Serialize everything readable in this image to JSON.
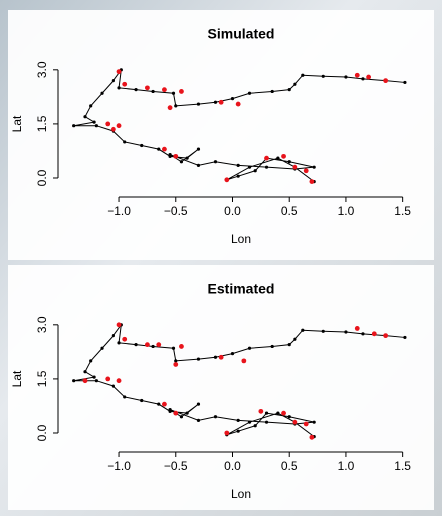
{
  "chart_data": [
    {
      "type": "track",
      "title": "Simulated",
      "x_label": "Lon",
      "y_label": "Lat",
      "xlim": [
        -1.45,
        1.6
      ],
      "ylim": [
        -0.25,
        3.3
      ],
      "xticks": [
        {
          "value": -1,
          "label": "−1.0"
        },
        {
          "value": -0.5,
          "label": "−0.5"
        },
        {
          "value": 0,
          "label": "0.0"
        },
        0.5,
        {
          "value": 1,
          "label": "1.0"
        },
        1.5
      ],
      "yticks": [
        {
          "value": 0,
          "label": "0.0"
        },
        1.5,
        {
          "value": 3,
          "label": "3.0"
        }
      ],
      "series": [
        {
          "color": "#000000",
          "x": [
            1.52,
            1.35,
            1.15,
            1.0,
            0.8,
            0.62,
            0.55,
            0.5,
            0.35,
            0.15,
            0.0,
            -0.15,
            -0.3,
            -0.5,
            -0.52,
            -0.7,
            -0.85,
            -1.0,
            -0.98,
            -1.05,
            -1.15,
            -1.25,
            -1.3,
            -1.22,
            -1.4,
            -1.2,
            -1.05,
            -0.95,
            -0.8,
            -0.65,
            -0.55,
            -0.4,
            -0.3,
            -0.45,
            -0.55,
            -0.3,
            -0.15,
            0.05,
            0.3,
            0.55,
            0.72,
            0.5,
            0.3,
            0.2,
            0.05,
            -0.05,
            0.15,
            0.4,
            0.55,
            0.72
          ],
          "values": [
            2.65,
            2.7,
            2.75,
            2.8,
            2.82,
            2.85,
            2.6,
            2.45,
            2.4,
            2.35,
            2.2,
            2.1,
            2.05,
            2.0,
            2.35,
            2.4,
            2.45,
            2.5,
            3.0,
            2.7,
            2.35,
            2.0,
            1.7,
            1.55,
            1.45,
            1.45,
            1.3,
            1.0,
            0.9,
            0.8,
            0.6,
            0.55,
            0.8,
            0.45,
            0.65,
            0.35,
            0.45,
            0.35,
            0.3,
            0.25,
            0.3,
            0.45,
            0.55,
            0.2,
            0.05,
            -0.05,
            0.3,
            0.55,
            0.3,
            -0.1
          ]
        },
        {
          "color": "#e8141c",
          "x": [
            1.1,
            1.2,
            1.35,
            -1.0,
            -0.95,
            -0.75,
            -0.6,
            -0.45,
            -0.1,
            0.05,
            -0.55,
            -1.1,
            -1.0,
            -1.05,
            -0.6,
            -0.5,
            0.3,
            0.45,
            0.55,
            0.65,
            -0.05,
            0.7
          ],
          "values": [
            2.85,
            2.8,
            2.7,
            2.95,
            2.6,
            2.5,
            2.45,
            2.4,
            2.1,
            2.05,
            1.95,
            1.5,
            1.45,
            1.35,
            0.8,
            0.6,
            0.55,
            0.6,
            0.3,
            0.2,
            -0.05,
            -0.1
          ]
        }
      ]
    },
    {
      "type": "track",
      "title": "Estimated",
      "x_label": "Lon",
      "y_label": "Lat",
      "xlim": [
        -1.45,
        1.6
      ],
      "ylim": [
        -0.25,
        3.3
      ],
      "xticks": [
        {
          "value": -1,
          "label": "−1.0"
        },
        {
          "value": -0.5,
          "label": "−0.5"
        },
        {
          "value": 0,
          "label": "0.0"
        },
        0.5,
        {
          "value": 1,
          "label": "1.0"
        },
        1.5
      ],
      "yticks": [
        {
          "value": 0,
          "label": "0.0"
        },
        1.5,
        {
          "value": 3,
          "label": "3.0"
        }
      ],
      "series": [
        {
          "color": "#000000",
          "x": [
            1.52,
            1.35,
            1.15,
            1.0,
            0.8,
            0.62,
            0.55,
            0.5,
            0.35,
            0.15,
            0.0,
            -0.15,
            -0.3,
            -0.5,
            -0.52,
            -0.7,
            -0.85,
            -1.0,
            -0.98,
            -1.05,
            -1.15,
            -1.25,
            -1.3,
            -1.22,
            -1.4,
            -1.2,
            -1.05,
            -0.95,
            -0.8,
            -0.65,
            -0.55,
            -0.4,
            -0.3,
            -0.45,
            -0.55,
            -0.3,
            -0.15,
            0.05,
            0.3,
            0.55,
            0.72,
            0.5,
            0.3,
            0.2,
            0.05,
            -0.05,
            0.15,
            0.4,
            0.55,
            0.72
          ],
          "values": [
            2.65,
            2.7,
            2.75,
            2.8,
            2.82,
            2.85,
            2.6,
            2.45,
            2.4,
            2.35,
            2.2,
            2.1,
            2.05,
            2.0,
            2.35,
            2.4,
            2.45,
            2.5,
            3.0,
            2.7,
            2.35,
            2.0,
            1.7,
            1.55,
            1.45,
            1.45,
            1.3,
            1.0,
            0.9,
            0.8,
            0.6,
            0.55,
            0.8,
            0.45,
            0.65,
            0.35,
            0.45,
            0.35,
            0.3,
            0.25,
            0.3,
            0.45,
            0.55,
            0.2,
            0.05,
            -0.05,
            0.3,
            0.55,
            0.3,
            -0.1
          ]
        },
        {
          "color": "#e8141c",
          "x": [
            1.1,
            1.25,
            1.35,
            -1.0,
            -0.95,
            -0.75,
            -0.65,
            -0.45,
            -0.1,
            0.1,
            -0.5,
            -1.1,
            -1.0,
            -1.3,
            -0.6,
            -0.5,
            0.25,
            0.45,
            0.55,
            0.65,
            -0.05,
            0.7
          ],
          "values": [
            2.9,
            2.75,
            2.7,
            3.0,
            2.6,
            2.45,
            2.45,
            2.4,
            2.1,
            2.0,
            1.9,
            1.5,
            1.45,
            1.45,
            0.8,
            0.55,
            0.6,
            0.55,
            0.3,
            0.25,
            0.0,
            -0.12
          ]
        }
      ]
    }
  ]
}
